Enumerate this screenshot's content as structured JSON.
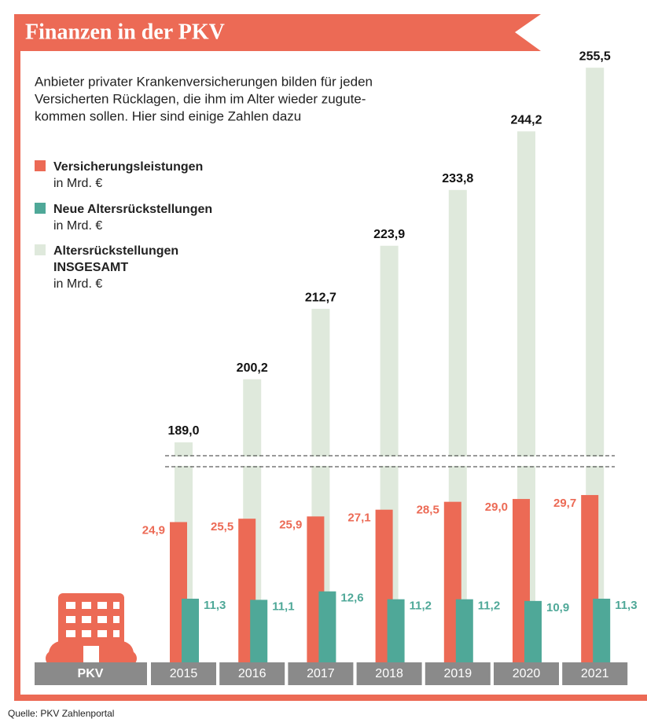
{
  "chart_data": {
    "type": "bar",
    "title": "Finanzen in der PKV",
    "subtitle_lines": [
      "Anbieter privater Krankenversicherungen bilden für jeden",
      "Versicherten Rücklagen, die ihm im Alter wieder zugute-",
      "kommen sollen. Hier sind einige Zahlen dazu"
    ],
    "unit": "in Mrd. €",
    "x_label": "PKV",
    "categories": [
      "2015",
      "2016",
      "2017",
      "2018",
      "2019",
      "2020",
      "2021"
    ],
    "series": [
      {
        "name": "Versicherungsleistungen",
        "color": "#ec6a55",
        "values": [
          24.9,
          25.5,
          25.9,
          27.1,
          28.5,
          29.0,
          29.7
        ],
        "value_labels": [
          "24,9",
          "25,5",
          "25,9",
          "27,1",
          "28,5",
          "29,0",
          "29,7"
        ]
      },
      {
        "name": "Neue Altersrückstellungen",
        "color": "#4fa898",
        "values": [
          11.3,
          11.1,
          12.6,
          11.2,
          11.2,
          10.9,
          11.3
        ],
        "value_labels": [
          "11,3",
          "11,1",
          "12,6",
          "11,2",
          "11,2",
          "10,9",
          "11,3"
        ]
      },
      {
        "name": "Altersrückstellungen INSGESAMT",
        "color": "#dfe9dc",
        "axis_break": true,
        "values": [
          189.0,
          200.2,
          212.7,
          223.9,
          233.8,
          244.2,
          255.5
        ],
        "value_labels": [
          "189,0",
          "200,2",
          "212,7",
          "223,9",
          "233,8",
          "244,2",
          "255,5"
        ]
      }
    ],
    "source": "Quelle: PKV Zahlenportal"
  }
}
